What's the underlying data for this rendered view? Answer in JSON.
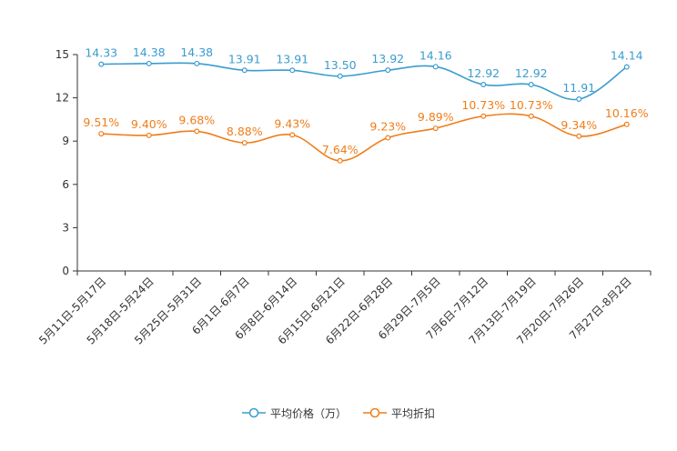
{
  "chart_data": {
    "type": "line",
    "title": "",
    "xlabel": "",
    "ylabel": "",
    "ylim": [
      0,
      15
    ],
    "yticks": [
      0,
      3,
      6,
      9,
      12,
      15
    ],
    "grid": false,
    "legend_position": "bottom-center",
    "categories": [
      "5月11日-5月17日",
      "5月18日-5月24日",
      "5月25日-5月31日",
      "6月1日-6月7日",
      "6月8日-6月14日",
      "6月15日-6月21日",
      "6月22日-6月28日",
      "6月29日-7月5日",
      "7月6日-7月12日",
      "7月13日-7月19日",
      "7月20日-7月26日",
      "7月27日-8月2日"
    ],
    "series": [
      {
        "name": "平均价格（万）",
        "color": "#3a9ccf",
        "values": [
          14.33,
          14.38,
          14.38,
          13.91,
          13.91,
          13.5,
          13.92,
          14.16,
          12.92,
          12.92,
          11.91,
          14.14
        ],
        "labels": [
          "14.33",
          "14.38",
          "14.38",
          "13.91",
          "13.91",
          "13.50",
          "13.92",
          "14.16",
          "12.92",
          "12.92",
          "11.91",
          "14.14"
        ]
      },
      {
        "name": "平均折扣",
        "color": "#f07d1a",
        "values": [
          9.51,
          9.4,
          9.68,
          8.88,
          9.43,
          7.64,
          9.23,
          9.89,
          10.73,
          10.73,
          9.34,
          10.16
        ],
        "labels": [
          "9.51%",
          "9.40%",
          "9.68%",
          "8.88%",
          "9.43%",
          "7.64%",
          "9.23%",
          "9.89%",
          "10.73%",
          "10.73%",
          "9.34%",
          "10.16%"
        ]
      }
    ]
  }
}
